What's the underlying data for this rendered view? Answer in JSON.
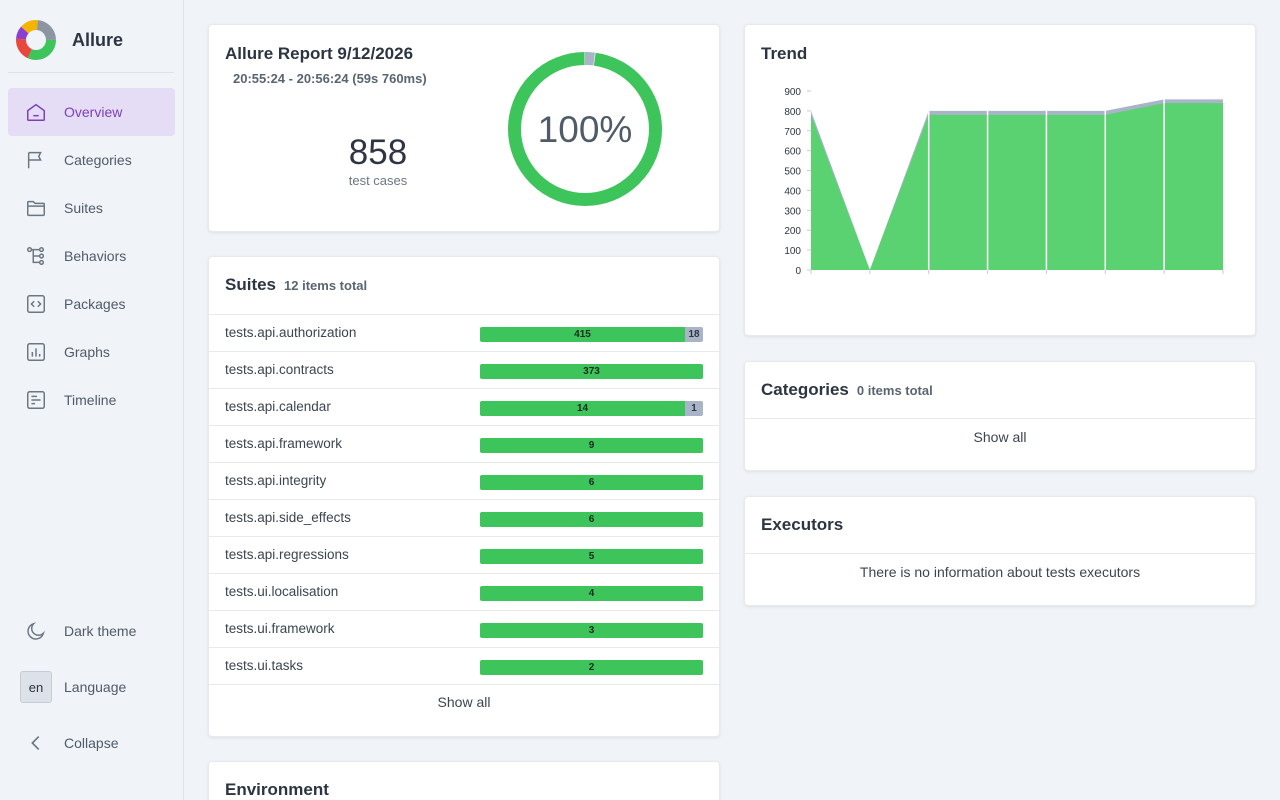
{
  "app": {
    "name": "Allure"
  },
  "nav": [
    {
      "label": "Overview",
      "icon": "home-icon",
      "active": true
    },
    {
      "label": "Categories",
      "icon": "flag-icon"
    },
    {
      "label": "Suites",
      "icon": "folder-icon"
    },
    {
      "label": "Behaviors",
      "icon": "tree-icon"
    },
    {
      "label": "Packages",
      "icon": "code-icon"
    },
    {
      "label": "Graphs",
      "icon": "bar-chart-icon"
    },
    {
      "label": "Timeline",
      "icon": "timeline-icon"
    }
  ],
  "sidebar_bottom": {
    "theme_label": "Dark theme",
    "language_code": "en",
    "language_label": "Language",
    "collapse_label": "Collapse"
  },
  "summary": {
    "title": "Allure Report 9/12/2026",
    "time": "20:55:24 - 20:56:24 (59s 760ms)",
    "count": "858",
    "count_label": "test cases",
    "percent": "100%",
    "passed": 839,
    "skipped": 19
  },
  "suites": {
    "title": "Suites",
    "subtitle": "12 items total",
    "show_all": "Show all",
    "rows": [
      {
        "name": "tests.api.authorization",
        "passed": 415,
        "skipped": 18
      },
      {
        "name": "tests.api.contracts",
        "passed": 373,
        "skipped": 0
      },
      {
        "name": "tests.api.calendar",
        "passed": 14,
        "skipped": 1
      },
      {
        "name": "tests.api.framework",
        "passed": 9,
        "skipped": 0
      },
      {
        "name": "tests.api.integrity",
        "passed": 6,
        "skipped": 0
      },
      {
        "name": "tests.api.side_effects",
        "passed": 6,
        "skipped": 0
      },
      {
        "name": "tests.api.regressions",
        "passed": 5,
        "skipped": 0
      },
      {
        "name": "tests.ui.localisation",
        "passed": 4,
        "skipped": 0
      },
      {
        "name": "tests.ui.framework",
        "passed": 3,
        "skipped": 0
      },
      {
        "name": "tests.ui.tasks",
        "passed": 2,
        "skipped": 0
      }
    ]
  },
  "environment": {
    "title": "Environment"
  },
  "trend": {
    "title": "Trend"
  },
  "categories": {
    "title": "Categories",
    "subtitle": "0 items total",
    "show_all": "Show all"
  },
  "executors": {
    "title": "Executors",
    "empty_text": "There is no information about tests executors"
  },
  "colors": {
    "passed": "#3dc45b",
    "skipped": "#aab4c8",
    "accent": "#7e3fb8"
  },
  "chart_data": {
    "type": "area",
    "title": "Trend",
    "x": [
      1,
      2,
      3,
      4,
      5,
      6,
      7,
      8
    ],
    "series": [
      {
        "name": "passed",
        "values": [
          780,
          0,
          780,
          780,
          780,
          780,
          839,
          839
        ]
      },
      {
        "name": "skipped",
        "values": [
          20,
          0,
          20,
          20,
          20,
          20,
          19,
          19
        ]
      }
    ],
    "yticks": [
      0,
      100,
      200,
      300,
      400,
      500,
      600,
      700,
      800,
      900
    ],
    "ylim": [
      0,
      900
    ]
  }
}
